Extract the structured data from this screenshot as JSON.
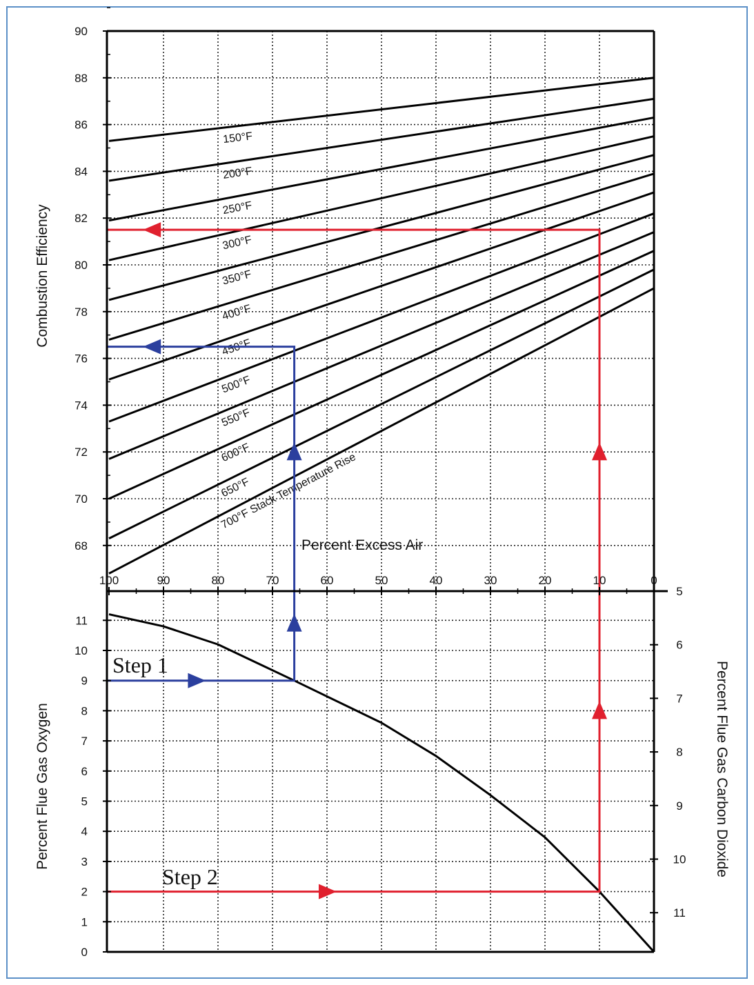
{
  "chart_data": {
    "type": "line",
    "x_axis": {
      "label": "Percent Excess Air",
      "range": [
        100,
        0
      ],
      "ticks": [
        100,
        90,
        80,
        70,
        60,
        50,
        40,
        30,
        20,
        10,
        0
      ],
      "grid": true
    },
    "top_panel": {
      "ylabel": "Combustion Efficiency",
      "ylim": [
        66,
        90
      ],
      "ticks": [
        68,
        70,
        72,
        74,
        76,
        78,
        80,
        82,
        84,
        86,
        88,
        90
      ],
      "series_note": "Stack Temperature Rise",
      "series": [
        {
          "name": "150°F",
          "x": [
            100,
            0
          ],
          "y": [
            85.3,
            88.0
          ]
        },
        {
          "name": "200°F",
          "x": [
            100,
            0
          ],
          "y": [
            83.6,
            87.1
          ]
        },
        {
          "name": "250°F",
          "x": [
            100,
            0
          ],
          "y": [
            81.9,
            86.3
          ]
        },
        {
          "name": "300°F",
          "x": [
            100,
            0
          ],
          "y": [
            80.2,
            85.5
          ]
        },
        {
          "name": "350°F",
          "x": [
            100,
            0
          ],
          "y": [
            78.5,
            84.7
          ]
        },
        {
          "name": "400°F",
          "x": [
            100,
            0
          ],
          "y": [
            76.8,
            83.9
          ]
        },
        {
          "name": "450°F",
          "x": [
            100,
            0
          ],
          "y": [
            75.1,
            83.1
          ]
        },
        {
          "name": "500°F",
          "x": [
            100,
            0
          ],
          "y": [
            73.3,
            82.2
          ]
        },
        {
          "name": "550°F",
          "x": [
            100,
            0
          ],
          "y": [
            71.7,
            81.4
          ]
        },
        {
          "name": "600°F",
          "x": [
            100,
            0
          ],
          "y": [
            70.0,
            80.6
          ]
        },
        {
          "name": "650°F",
          "x": [
            100,
            0
          ],
          "y": [
            68.3,
            79.8
          ]
        },
        {
          "name": "700°F",
          "x": [
            100,
            0
          ],
          "y": [
            66.8,
            79.0
          ]
        }
      ]
    },
    "bottom_panel": {
      "ylabel_left": "Percent Flue Gas Oxygen",
      "ylim_left": [
        0,
        11.5
      ],
      "ticks_left": [
        0,
        1,
        2,
        3,
        4,
        5,
        6,
        7,
        8,
        9,
        10,
        11
      ],
      "ylabel_right": "Percent Flue Gas Carbon Dioxide",
      "ticks_right": [
        5,
        6,
        7,
        8,
        9,
        10,
        11
      ],
      "curve": {
        "x": [
          100,
          90,
          80,
          66,
          50,
          40,
          30,
          20,
          10,
          0
        ],
        "y": [
          11.2,
          10.8,
          10.2,
          9.0,
          7.6,
          6.5,
          5.2,
          3.8,
          2.0,
          0.0
        ]
      }
    },
    "annotations": [
      {
        "label": "Step 1",
        "color": "#2b3f9e",
        "oxygen": 9,
        "excess_air": 66,
        "efficiency": 76.5
      },
      {
        "label": "Step 2",
        "color": "#e0202e",
        "oxygen": 2,
        "excess_air": 10,
        "efficiency": 81.5
      }
    ],
    "frame_color": "#5b8fc7"
  }
}
